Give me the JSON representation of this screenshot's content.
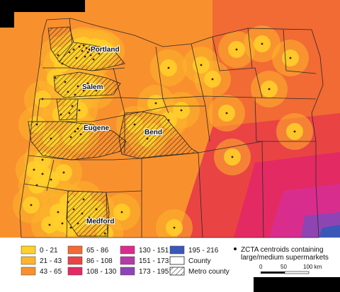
{
  "map": {
    "cities": [
      {
        "name": "Portland"
      },
      {
        "name": "Salem"
      },
      {
        "name": "Eugene"
      },
      {
        "name": "Bend"
      },
      {
        "name": "Medford"
      }
    ]
  },
  "legend": {
    "bins": [
      {
        "label": "0 - 21",
        "color": "#ffd02a"
      },
      {
        "label": "21 - 43",
        "color": "#fdb42c"
      },
      {
        "label": "43 - 65",
        "color": "#f9902e"
      },
      {
        "label": "65 - 86",
        "color": "#f26a34"
      },
      {
        "label": "86 - 108",
        "color": "#ea4344"
      },
      {
        "label": "108 - 130",
        "color": "#e42a62"
      },
      {
        "label": "130 - 151",
        "color": "#d92d8e"
      },
      {
        "label": "151 - 173",
        "color": "#b83aa6"
      },
      {
        "label": "173 - 195",
        "color": "#8e45b3"
      },
      {
        "label": "195 - 216",
        "color": "#3b58b8"
      }
    ],
    "county_label": "County",
    "metro_label": "Metro county",
    "zcta_label_line1": "ZCTA centroids containing",
    "zcta_label_line2": "large/medium supermarkets"
  },
  "scale": {
    "ticks": [
      "0",
      "50",
      "100 km"
    ]
  }
}
